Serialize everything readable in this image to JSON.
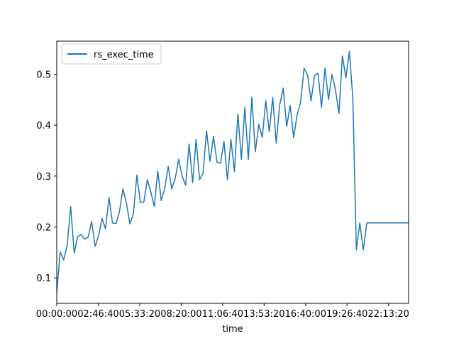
{
  "chart_data": {
    "type": "line",
    "title": "",
    "xlabel": "time",
    "ylabel": "",
    "x_unit": "time of day (HH:MM:SS)",
    "xlim": [
      "00:00:00",
      "23:34:00"
    ],
    "ylim": [
      0.05,
      0.565
    ],
    "x_ticks": [
      "00:00:00",
      "02:46:40",
      "05:33:20",
      "08:20:00",
      "11:06:40",
      "13:53:20",
      "16:40:00",
      "19:26:40",
      "22:13:20"
    ],
    "y_ticks": [
      "0.1",
      "0.2",
      "0.3",
      "0.4",
      "0.5"
    ],
    "y_tick_values": [
      0.1,
      0.2,
      0.3,
      0.4,
      0.5
    ],
    "grid": false,
    "legend": {
      "placement": "upper-left",
      "entries": [
        "rs_exec_time"
      ]
    },
    "series": [
      {
        "name": "rs_exec_time",
        "color": "#1f77b4",
        "x": [
          "00:00:00",
          "00:14:00",
          "00:28:00",
          "00:42:00",
          "00:56:00",
          "01:10:00",
          "01:24:00",
          "01:38:00",
          "01:52:00",
          "02:06:00",
          "02:20:00",
          "02:34:00",
          "02:48:00",
          "03:02:00",
          "03:16:00",
          "03:30:00",
          "03:44:00",
          "03:58:00",
          "04:12:00",
          "04:26:00",
          "04:40:00",
          "04:54:00",
          "05:08:00",
          "05:22:00",
          "05:36:00",
          "05:50:00",
          "06:04:00",
          "06:18:00",
          "06:32:00",
          "06:46:00",
          "07:00:00",
          "07:14:00",
          "07:28:00",
          "07:42:00",
          "07:56:00",
          "08:10:00",
          "08:24:00",
          "08:38:00",
          "08:52:00",
          "09:06:00",
          "09:20:00",
          "09:34:00",
          "09:48:00",
          "10:02:00",
          "10:16:00",
          "10:30:00",
          "10:44:00",
          "10:58:00",
          "11:12:00",
          "11:26:00",
          "11:40:00",
          "11:54:00",
          "12:08:00",
          "12:22:00",
          "12:36:00",
          "12:50:00",
          "13:04:00",
          "13:18:00",
          "13:32:00",
          "13:46:00",
          "14:00:00",
          "14:14:00",
          "14:28:00",
          "14:42:00",
          "14:56:00",
          "15:10:00",
          "15:24:00",
          "15:38:00",
          "15:52:00",
          "16:06:00",
          "16:20:00",
          "16:34:00",
          "16:48:00",
          "17:02:00",
          "17:16:00",
          "17:30:00",
          "17:44:00",
          "17:58:00",
          "18:12:00",
          "18:26:00",
          "18:40:00",
          "18:54:00",
          "19:08:00",
          "19:22:00",
          "19:36:00",
          "19:50:00",
          "20:04:00",
          "20:18:00",
          "20:32:00",
          "20:46:00",
          "21:00:00",
          "21:14:00",
          "21:28:00",
          "21:42:00",
          "21:56:00",
          "22:10:00",
          "22:24:00",
          "22:38:00",
          "22:52:00",
          "23:06:00",
          "23:20:00",
          "23:34:00"
        ],
        "values": [
          0.072,
          0.151,
          0.135,
          0.165,
          0.24,
          0.149,
          0.181,
          0.185,
          0.176,
          0.18,
          0.211,
          0.162,
          0.182,
          0.217,
          0.196,
          0.258,
          0.208,
          0.207,
          0.23,
          0.275,
          0.247,
          0.206,
          0.226,
          0.302,
          0.248,
          0.249,
          0.293,
          0.269,
          0.24,
          0.31,
          0.252,
          0.276,
          0.319,
          0.275,
          0.295,
          0.333,
          0.3,
          0.282,
          0.363,
          0.287,
          0.372,
          0.293,
          0.306,
          0.389,
          0.329,
          0.378,
          0.327,
          0.325,
          0.368,
          0.293,
          0.372,
          0.309,
          0.422,
          0.333,
          0.435,
          0.333,
          0.455,
          0.348,
          0.402,
          0.376,
          0.448,
          0.387,
          0.454,
          0.365,
          0.44,
          0.473,
          0.397,
          0.439,
          0.376,
          0.42,
          0.445,
          0.512,
          0.498,
          0.448,
          0.497,
          0.502,
          0.435,
          0.512,
          0.45,
          0.5,
          0.47,
          0.423,
          0.536,
          0.493,
          0.545,
          0.452,
          0.155,
          0.208,
          0.155,
          0.208,
          0.208,
          0.208,
          0.208,
          0.208,
          0.208,
          0.208,
          0.208,
          0.208,
          0.208,
          0.208,
          0.208,
          0.208
        ]
      }
    ]
  }
}
